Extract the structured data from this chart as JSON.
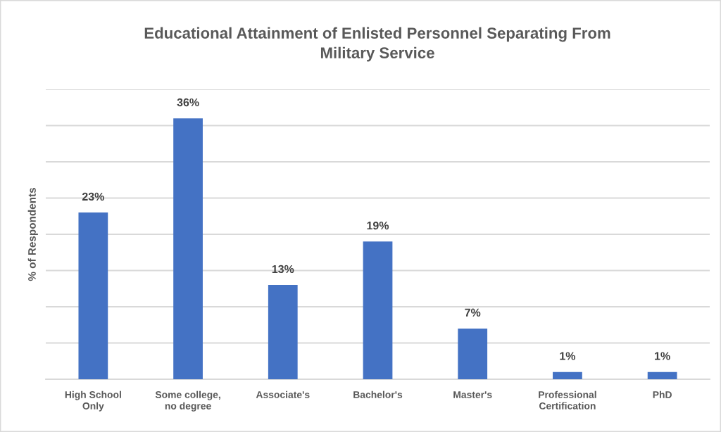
{
  "chart_data": {
    "type": "bar",
    "title": "Educational Attainment of Enlisted Personnel Separating From Military Service",
    "ylabel": "% of Respondents",
    "categories": [
      "High School Only",
      "Some college, no degree",
      "Associate's",
      "Bachelor's",
      "Master's",
      "Professional Certification",
      "PhD"
    ],
    "values": [
      23,
      36,
      13,
      19,
      7,
      1,
      1
    ],
    "color": "#4472c4",
    "value_labels": [
      "23%",
      "36%",
      "13%",
      "19%",
      "7%",
      "1%",
      "1%"
    ],
    "ylim": [
      0,
      40
    ],
    "yticks": [
      {
        "value": 0,
        "label": null
      },
      {
        "value": 5,
        "label": null
      },
      {
        "value": 10,
        "label": null
      },
      {
        "value": 15,
        "label": null
      },
      {
        "value": 20,
        "label": null
      },
      {
        "value": 25,
        "label": null
      },
      {
        "value": 30,
        "label": null
      },
      {
        "value": 35,
        "label": null
      },
      {
        "value": 40,
        "label": null
      }
    ],
    "grid": "y",
    "tick_labels": "x"
  }
}
